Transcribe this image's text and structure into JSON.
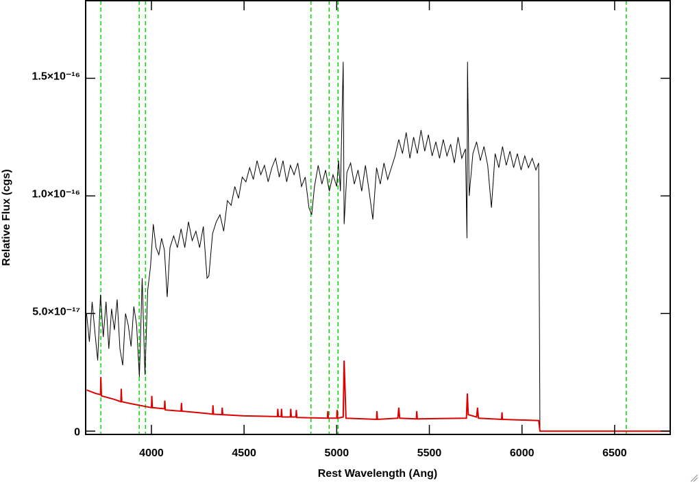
{
  "chart_data": {
    "type": "line",
    "xlabel": "Rest Wavelength (Ang)",
    "ylabel": "Relative Flux (cgs)",
    "xlim": [
      3645,
      6800
    ],
    "ylim": [
      -1.4e-18,
      1.83e-16
    ],
    "xticks": [
      4000,
      4500,
      5000,
      5500,
      6000,
      6500
    ],
    "yticks": [
      0,
      {
        "value": 5e-17,
        "label": "5.0×10⁻¹⁷"
      },
      {
        "value": 1e-16,
        "label": "1.0×10⁻¹⁶"
      },
      {
        "value": 1.5e-16,
        "label": "1.5×10⁻¹⁶"
      }
    ],
    "vlines": {
      "color": "#00dd00",
      "x": [
        3727,
        3934,
        3968,
        4861,
        4959,
        5007,
        6563
      ]
    },
    "series": [
      {
        "color": "#000000",
        "x": [
          3650,
          3665,
          3680,
          3695,
          3710,
          3725,
          3740,
          3755,
          3770,
          3785,
          3800,
          3815,
          3830,
          3845,
          3860,
          3875,
          3890,
          3905,
          3920,
          3935,
          3950,
          3965,
          3980,
          3995,
          4010,
          4025,
          4040,
          4055,
          4070,
          4085,
          4100,
          4120,
          4140,
          4160,
          4180,
          4200,
          4220,
          4240,
          4260,
          4280,
          4300,
          4310,
          4330,
          4350,
          4370,
          4390,
          4410,
          4430,
          4450,
          4470,
          4490,
          4510,
          4530,
          4550,
          4570,
          4590,
          4610,
          4630,
          4650,
          4670,
          4690,
          4710,
          4730,
          4750,
          4770,
          4790,
          4810,
          4830,
          4850,
          4865,
          4880,
          4900,
          4920,
          4940,
          4960,
          4980,
          5000,
          5010,
          5020,
          5035,
          5040,
          5055,
          5075,
          5095,
          5115,
          5135,
          5155,
          5175,
          5195,
          5215,
          5235,
          5255,
          5275,
          5295,
          5315,
          5335,
          5355,
          5375,
          5395,
          5415,
          5435,
          5455,
          5475,
          5495,
          5515,
          5535,
          5555,
          5575,
          5595,
          5615,
          5635,
          5655,
          5675,
          5695,
          5703,
          5706,
          5715,
          5735,
          5755,
          5775,
          5795,
          5815,
          5835,
          5855,
          5875,
          5895,
          5915,
          5935,
          5955,
          5975,
          5995,
          6015,
          6035,
          6055,
          6075,
          6090,
          6097,
          6800
        ],
        "values": [
          5e-17,
          3.8e-17,
          5.5e-17,
          4.2e-17,
          3e-17,
          5.8e-17,
          4e-17,
          5.5e-17,
          3.5e-17,
          5.2e-17,
          4.3e-17,
          5.6e-17,
          3.5e-17,
          2.8e-17,
          5e-17,
          4.5e-17,
          3.6e-17,
          5.3e-17,
          4.5e-17,
          2.3e-17,
          6.5e-17,
          2.4e-17,
          6e-17,
          7e-17,
          8.8e-17,
          7.8e-17,
          7.5e-17,
          8.2e-17,
          7.7e-17,
          5.7e-17,
          7.8e-17,
          8.3e-17,
          7.8e-17,
          8.6e-17,
          7.8e-17,
          8.9e-17,
          8.1e-17,
          8.5e-17,
          7.8e-17,
          8.7e-17,
          6.5e-17,
          6.6e-17,
          8.4e-17,
          8.9e-17,
          9.2e-17,
          8.5e-17,
          9.8e-17,
          9.6e-17,
          1.04e-16,
          9.9e-17,
          1.08e-16,
          1.06e-16,
          1.12e-16,
          1.07e-16,
          1.15e-16,
          1.09e-16,
          1.13e-16,
          1.06e-16,
          1.12e-16,
          1.16e-16,
          1.08e-16,
          1.15e-16,
          1.06e-16,
          1.13e-16,
          1.09e-16,
          1.14e-16,
          1.04e-16,
          1.08e-16,
          9.5e-17,
          9.2e-17,
          1.04e-16,
          1.13e-16,
          1.05e-16,
          1.11e-16,
          1.02e-16,
          1.09e-16,
          1.04e-16,
          1.15e-16,
          1.02e-16,
          1.57e-16,
          8.8e-17,
          1.1e-16,
          1.14e-16,
          1.05e-16,
          1.11e-16,
          1.02e-16,
          1.13e-16,
          1.02e-16,
          9e-17,
          1.12e-16,
          1.05e-16,
          1.14e-16,
          1.07e-16,
          1.12e-16,
          1.17e-16,
          1.24e-16,
          1.18e-16,
          1.27e-16,
          1.16e-16,
          1.25e-16,
          1.18e-16,
          1.28e-16,
          1.19e-16,
          1.26e-16,
          1.17e-16,
          1.23e-16,
          1.16e-16,
          1.24e-16,
          1.17e-16,
          1.22e-16,
          1.14e-16,
          1.25e-16,
          1.16e-16,
          1.2e-16,
          8.2e-17,
          1.57e-16,
          1e-16,
          1.18e-16,
          1.23e-16,
          1.15e-16,
          1.21e-16,
          1.13e-16,
          9.5e-17,
          1.18e-16,
          1.12e-16,
          1.21e-16,
          1.13e-16,
          1.19e-16,
          1.12e-16,
          1.18e-16,
          1.11e-16,
          1.17e-16,
          1.12e-16,
          1.16e-16,
          1.11e-16,
          1.14e-16,
          0,
          0
        ]
      },
      {
        "color": "#dd0000",
        "x": [
          3650,
          3700,
          3725,
          3727,
          3730,
          3800,
          3835,
          3837,
          3840,
          3900,
          4000,
          4002,
          4005,
          4070,
          4072,
          4075,
          4160,
          4162,
          4165,
          4300,
          4330,
          4332,
          4335,
          4380,
          4382,
          4385,
          4500,
          4680,
          4682,
          4685,
          4700,
          4702,
          4705,
          4750,
          4752,
          4755,
          4780,
          4782,
          4785,
          4950,
          4952,
          4955,
          5000,
          5002,
          5005,
          5035,
          5040,
          5045,
          5050,
          5215,
          5217,
          5220,
          5330,
          5335,
          5340,
          5430,
          5432,
          5435,
          5700,
          5705,
          5710,
          5755,
          5760,
          5765,
          5890,
          5892,
          5895,
          6090,
          6097,
          6800
        ],
        "values": [
          1.75e-17,
          1.6e-17,
          1.55e-17,
          2.3e-17,
          1.5e-17,
          1.35e-17,
          1.25e-17,
          1.8e-17,
          1.25e-17,
          1.15e-17,
          1e-17,
          1.5e-17,
          1e-17,
          9.5e-18,
          1.3e-17,
          9e-18,
          8.5e-18,
          1.2e-17,
          8.5e-18,
          7.5e-18,
          7.2e-18,
          1.1e-17,
          7.2e-18,
          7e-18,
          1e-17,
          7e-18,
          6.5e-18,
          6.2e-18,
          9.5e-18,
          6.2e-18,
          6.2e-18,
          9.5e-18,
          6e-18,
          6e-18,
          9.5e-18,
          6e-18,
          6e-18,
          9e-18,
          5.8e-18,
          5.5e-18,
          8.5e-18,
          5.5e-18,
          5.5e-18,
          9e-18,
          5.5e-18,
          6e-18,
          3e-17,
          1.8e-17,
          5.5e-18,
          5e-18,
          8.5e-18,
          5e-18,
          5.5e-18,
          1e-17,
          5.5e-18,
          5.2e-18,
          8.5e-18,
          5.2e-18,
          5.5e-18,
          1.6e-17,
          7e-18,
          6e-18,
          1e-17,
          5.5e-18,
          5e-18,
          8e-18,
          5e-18,
          4.5e-18,
          0,
          0
        ]
      }
    ]
  }
}
